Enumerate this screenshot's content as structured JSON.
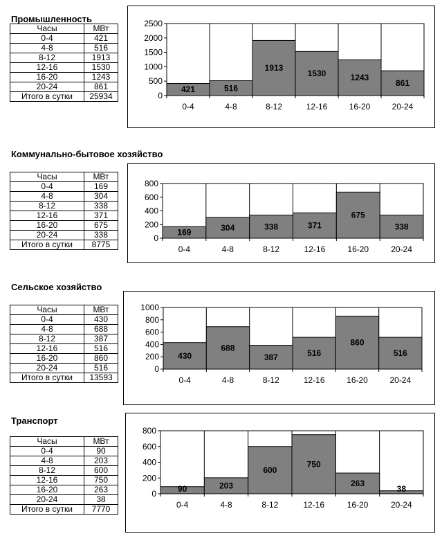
{
  "sections": [
    {
      "title": "Промышленность",
      "table": {
        "col_hours": "Часы",
        "col_mw": "МВт",
        "rows": [
          {
            "h": "0-4",
            "v": "421"
          },
          {
            "h": "4-8",
            "v": "516"
          },
          {
            "h": "8-12",
            "v": "1913"
          },
          {
            "h": "12-16",
            "v": "1530"
          },
          {
            "h": "16-20",
            "v": "1243"
          },
          {
            "h": "20-24",
            "v": "861"
          }
        ],
        "total_label": "Итого в сутки",
        "total_value": "25934"
      }
    },
    {
      "title": "Коммунально-бытовое хозяйство",
      "table": {
        "col_hours": "Часы",
        "col_mw": "МВт",
        "rows": [
          {
            "h": "0-4",
            "v": "169"
          },
          {
            "h": "4-8",
            "v": "304"
          },
          {
            "h": "8-12",
            "v": "338"
          },
          {
            "h": "12-16",
            "v": "371"
          },
          {
            "h": "16-20",
            "v": "675"
          },
          {
            "h": "20-24",
            "v": "338"
          }
        ],
        "total_label": "Итого в сутки",
        "total_value": "8775"
      }
    },
    {
      "title": "Сельское хозяйство",
      "table": {
        "col_hours": "Часы",
        "col_mw": "МВт",
        "rows": [
          {
            "h": "0-4",
            "v": "430"
          },
          {
            "h": "4-8",
            "v": "688"
          },
          {
            "h": "8-12",
            "v": "387"
          },
          {
            "h": "12-16",
            "v": "516"
          },
          {
            "h": "16-20",
            "v": "860"
          },
          {
            "h": "20-24",
            "v": "516"
          }
        ],
        "total_label": "Итого в сутки",
        "total_value": "13593"
      }
    },
    {
      "title": "Транспорт",
      "table": {
        "col_hours": "Часы",
        "col_mw": "МВт",
        "rows": [
          {
            "h": "0-4",
            "v": "90"
          },
          {
            "h": "4-8",
            "v": "203"
          },
          {
            "h": "8-12",
            "v": "600"
          },
          {
            "h": "12-16",
            "v": "750"
          },
          {
            "h": "16-20",
            "v": "263"
          },
          {
            "h": "20-24",
            "v": "38"
          }
        ],
        "total_label": "Итого в сутки",
        "total_value": "7770"
      }
    }
  ],
  "chart_data": [
    {
      "type": "bar",
      "title": "Промышленность",
      "categories": [
        "0-4",
        "4-8",
        "8-12",
        "12-16",
        "16-20",
        "20-24"
      ],
      "values": [
        421,
        516,
        1913,
        1530,
        1243,
        861
      ],
      "ylim": [
        0,
        2500
      ],
      "yticks": [
        0,
        500,
        1000,
        1500,
        2000,
        2500
      ],
      "grid": false,
      "legend": "none",
      "bar_color": "#808080",
      "bar_gap": 0,
      "data_labels": true
    },
    {
      "type": "bar",
      "title": "Коммунально-бытовое хозяйство",
      "categories": [
        "0-4",
        "4-8",
        "8-12",
        "12-16",
        "16-20",
        "20-24"
      ],
      "values": [
        169,
        304,
        338,
        371,
        675,
        338
      ],
      "ylim": [
        0,
        800
      ],
      "yticks": [
        0,
        200,
        400,
        600,
        800
      ],
      "grid": false,
      "legend": "none",
      "bar_color": "#808080",
      "bar_gap": 0,
      "data_labels": true
    },
    {
      "type": "bar",
      "title": "Сельское хозяйство",
      "categories": [
        "0-4",
        "4-8",
        "8-12",
        "12-16",
        "16-20",
        "20-24"
      ],
      "values": [
        430,
        688,
        387,
        516,
        860,
        516
      ],
      "ylim": [
        0,
        1000
      ],
      "yticks": [
        0,
        200,
        400,
        600,
        800,
        1000
      ],
      "grid": false,
      "legend": "none",
      "bar_color": "#808080",
      "bar_gap": 0,
      "data_labels": true
    },
    {
      "type": "bar",
      "title": "Транспорт",
      "categories": [
        "0-4",
        "4-8",
        "8-12",
        "12-16",
        "16-20",
        "20-24"
      ],
      "values": [
        90,
        203,
        600,
        750,
        263,
        38
      ],
      "ylim": [
        0,
        800
      ],
      "yticks": [
        0,
        200,
        400,
        600,
        800
      ],
      "grid": false,
      "legend": "none",
      "bar_color": "#808080",
      "bar_gap": 0,
      "data_labels": true
    }
  ]
}
